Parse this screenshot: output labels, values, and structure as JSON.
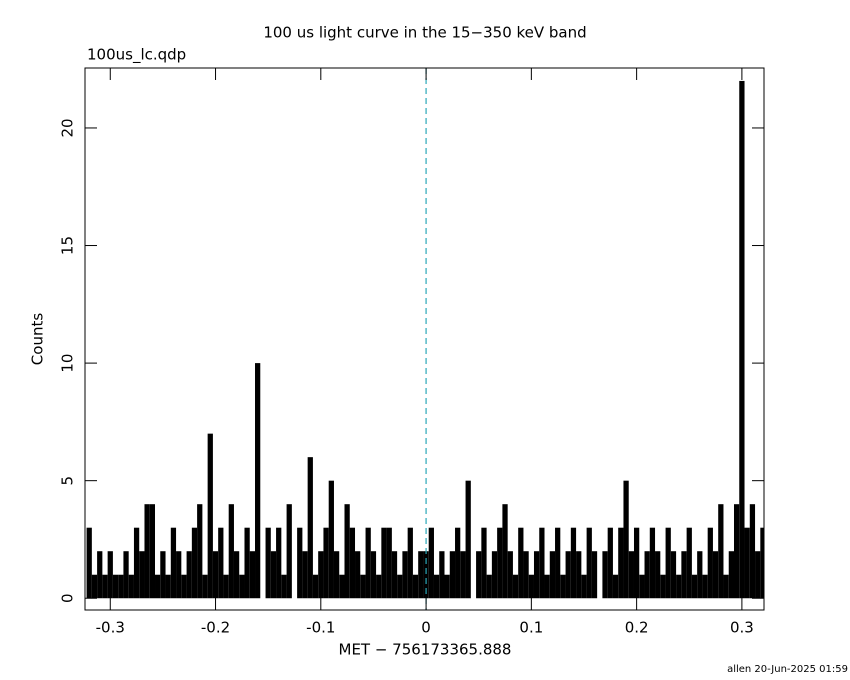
{
  "chart_data": {
    "type": "histogram-step",
    "title": "100 us light curve in the 15−350 keV band",
    "subtitle": "100us_lc.qdp",
    "xlabel": "MET − 756173365.888",
    "ylabel": "Counts",
    "footer": "allen 20-Jun-2025 01:59",
    "color": "#000000",
    "vline": {
      "x": 0,
      "color": "#2aa7b8"
    },
    "xlim": [
      -0.324,
      0.321
    ],
    "ylim": [
      -0.5,
      22.55
    ],
    "xticks": [
      -0.3,
      -0.2,
      -0.1,
      0,
      0.1,
      0.2,
      0.3
    ],
    "yticks": [
      0,
      5,
      10,
      15,
      20
    ],
    "x": [
      -0.32,
      -0.315,
      -0.31,
      -0.305,
      -0.3,
      -0.295,
      -0.29,
      -0.285,
      -0.28,
      -0.275,
      -0.27,
      -0.265,
      -0.26,
      -0.255,
      -0.25,
      -0.245,
      -0.24,
      -0.235,
      -0.23,
      -0.225,
      -0.22,
      -0.215,
      -0.21,
      -0.205,
      -0.2,
      -0.195,
      -0.19,
      -0.185,
      -0.18,
      -0.175,
      -0.17,
      -0.165,
      -0.16,
      -0.155,
      -0.15,
      -0.145,
      -0.14,
      -0.135,
      -0.13,
      -0.125,
      -0.12,
      -0.115,
      -0.11,
      -0.105,
      -0.1,
      -0.095,
      -0.09,
      -0.085,
      -0.08,
      -0.075,
      -0.07,
      -0.065,
      -0.06,
      -0.055,
      -0.05,
      -0.045,
      -0.04,
      -0.035,
      -0.03,
      -0.025,
      -0.02,
      -0.015,
      -0.01,
      -0.005,
      0,
      0.005,
      0.01,
      0.015,
      0.02,
      0.025,
      0.03,
      0.035,
      0.04,
      0.045,
      0.05,
      0.055,
      0.06,
      0.065,
      0.07,
      0.075,
      0.08,
      0.085,
      0.09,
      0.095,
      0.1,
      0.105,
      0.11,
      0.115,
      0.12,
      0.125,
      0.13,
      0.135,
      0.14,
      0.145,
      0.15,
      0.155,
      0.16,
      0.165,
      0.17,
      0.175,
      0.18,
      0.185,
      0.19,
      0.195,
      0.2,
      0.205,
      0.21,
      0.215,
      0.22,
      0.225,
      0.23,
      0.235,
      0.24,
      0.245,
      0.25,
      0.255,
      0.26,
      0.265,
      0.27,
      0.275,
      0.28,
      0.285,
      0.29,
      0.295,
      0.3,
      0.305,
      0.31,
      0.315,
      0.32
    ],
    "values": [
      3,
      1,
      2,
      1,
      2,
      1,
      1,
      2,
      1,
      3,
      2,
      4,
      4,
      1,
      2,
      1,
      3,
      2,
      1,
      2,
      3,
      4,
      1,
      7,
      2,
      3,
      1,
      4,
      2,
      1,
      3,
      2,
      10,
      0,
      3,
      2,
      3,
      1,
      4,
      0,
      3,
      2,
      6,
      1,
      2,
      3,
      5,
      2,
      1,
      4,
      3,
      2,
      1,
      3,
      2,
      1,
      3,
      3,
      2,
      1,
      2,
      3,
      1,
      2,
      2,
      3,
      1,
      2,
      1,
      2,
      3,
      2,
      5,
      0,
      2,
      3,
      1,
      2,
      3,
      4,
      2,
      1,
      3,
      2,
      1,
      2,
      3,
      1,
      2,
      3,
      1,
      2,
      3,
      2,
      1,
      3,
      2,
      0,
      2,
      3,
      1,
      3,
      5,
      2,
      3,
      1,
      2,
      3,
      2,
      1,
      3,
      2,
      1,
      2,
      3,
      1,
      2,
      1,
      3,
      2,
      4,
      1,
      2,
      4,
      22,
      3,
      4,
      2,
      3
    ]
  }
}
